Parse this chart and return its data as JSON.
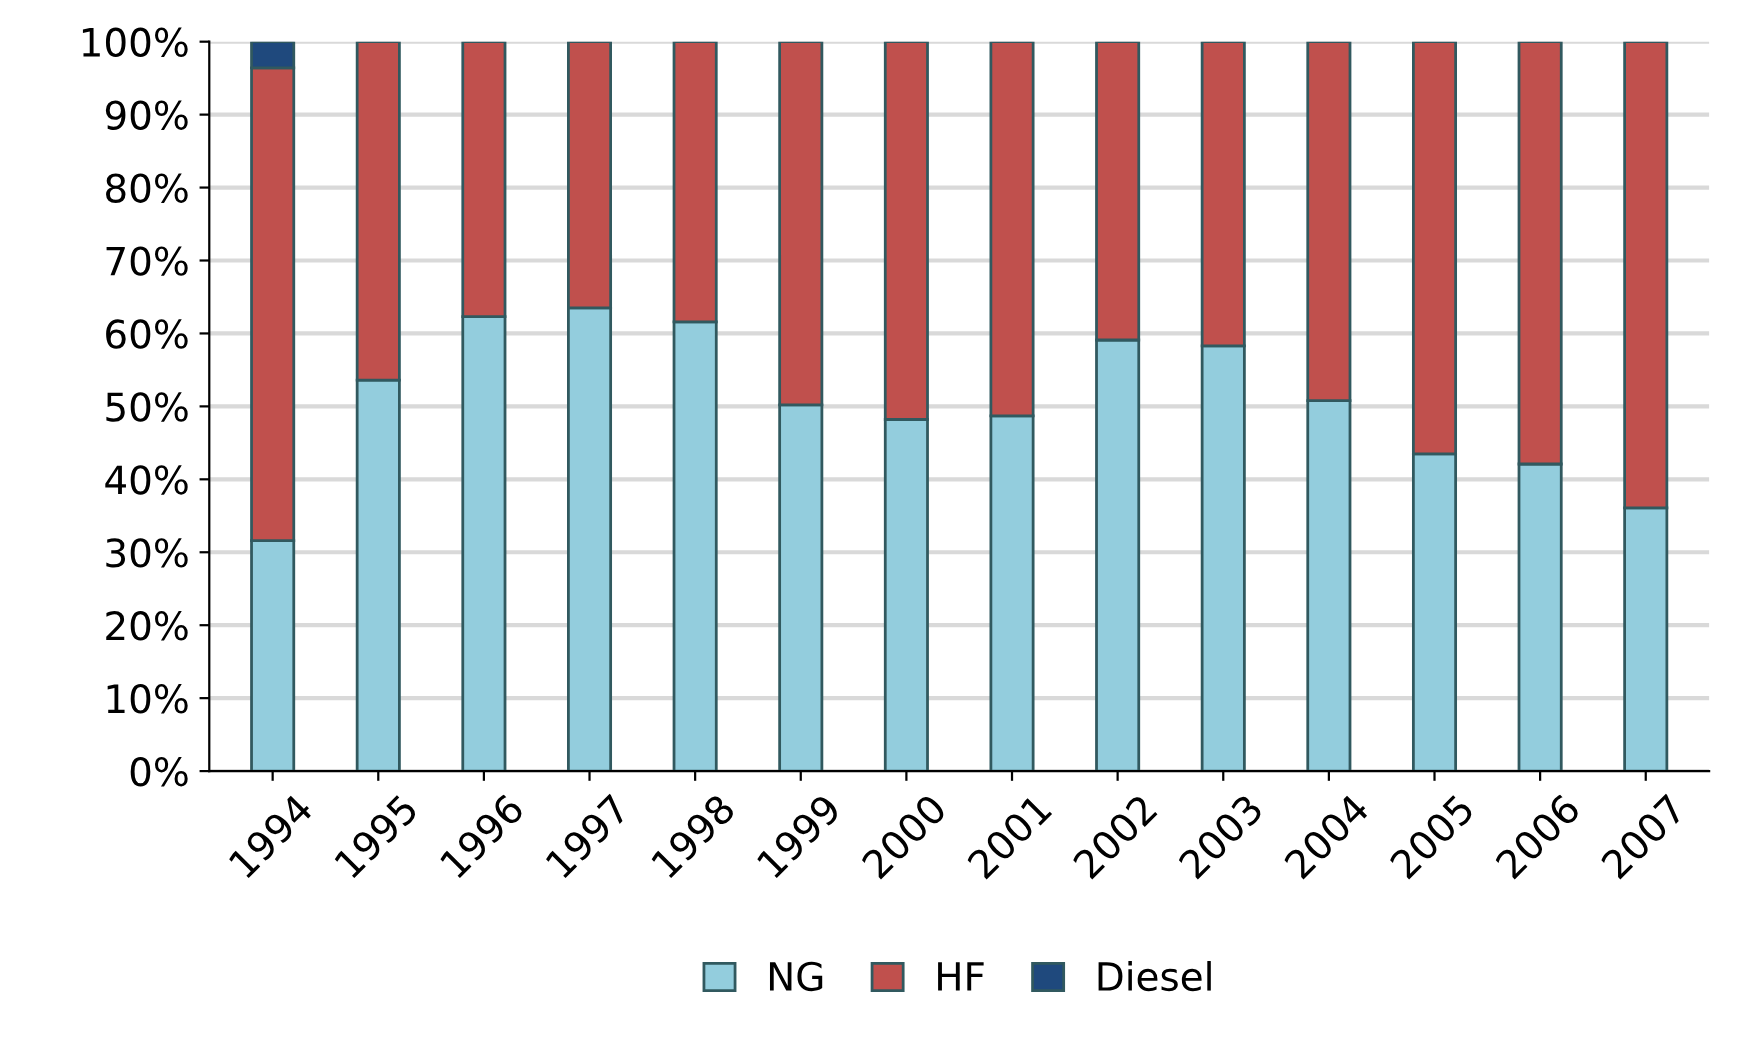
{
  "chart_data": {
    "type": "bar",
    "stacked": true,
    "categories": [
      "1994",
      "1995",
      "1996",
      "1997",
      "1998",
      "1999",
      "2000",
      "2001",
      "2002",
      "2003",
      "2004",
      "2005",
      "2006",
      "2007"
    ],
    "series": [
      {
        "name": "NG",
        "color": "#93cddd",
        "values": [
          31.6,
          53.6,
          62.3,
          63.5,
          61.6,
          50.2,
          48.2,
          48.7,
          59.1,
          58.3,
          50.8,
          43.5,
          42.1,
          36.1
        ]
      },
      {
        "name": "HF",
        "color": "#c0504d",
        "values": [
          64.8,
          46.4,
          37.7,
          36.5,
          38.4,
          49.8,
          51.8,
          51.3,
          40.9,
          41.7,
          49.2,
          56.5,
          57.9,
          63.9
        ]
      },
      {
        "name": "Diesel",
        "color": "#1f497d",
        "values": [
          3.6,
          null,
          null,
          null,
          null,
          null,
          null,
          null,
          null,
          null,
          null,
          null,
          null,
          null
        ]
      }
    ],
    "ylim": [
      0,
      100
    ],
    "yticks": [
      {
        "value": 0,
        "label": "0%"
      },
      {
        "value": 10,
        "label": "10%"
      },
      {
        "value": 20,
        "label": "20%"
      },
      {
        "value": 30,
        "label": "30%"
      },
      {
        "value": 40,
        "label": "40%"
      },
      {
        "value": 50,
        "label": "50%"
      },
      {
        "value": 60,
        "label": "60%"
      },
      {
        "value": 70,
        "label": "70%"
      },
      {
        "value": 80,
        "label": "80%"
      },
      {
        "value": 90,
        "label": "90%"
      },
      {
        "value": 100,
        "label": "100%"
      }
    ],
    "grid": "y",
    "legend": "bottom"
  }
}
